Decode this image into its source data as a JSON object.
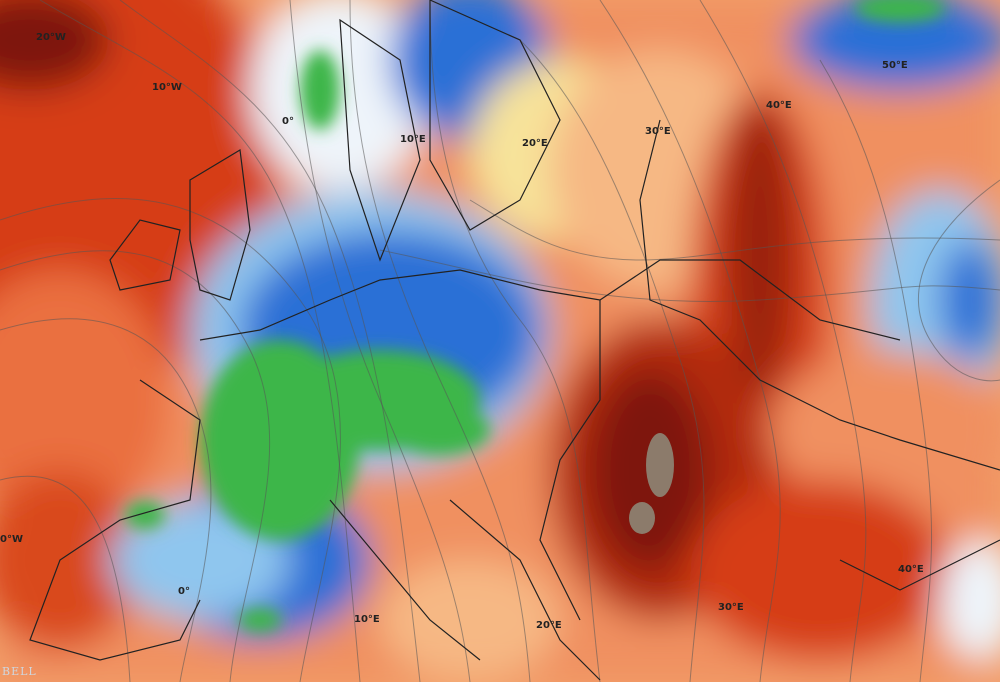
{
  "map": {
    "layers": [
      "temperature-anomaly-fill",
      "streamlines",
      "country-borders"
    ],
    "colors": {
      "dark_red": "#7e1508",
      "red": "#d63c18",
      "orange": "#ef8550",
      "light_orange": "#f6b884",
      "yellow": "#f7e39a",
      "white": "#eef4fa",
      "light_blue": "#8fc6ee",
      "blue": "#2a70d6",
      "green": "#3cb64a",
      "brown": "#8c7b6b"
    },
    "grid_labels": {
      "w20_top": "20°W",
      "w10_top": "10°W",
      "zero_top": "0°",
      "e10_top": "10°E",
      "e20_top": "20°E",
      "e30_top": "30°E",
      "e40_top": "40°E",
      "e50_top": "50°E",
      "w_left": "0°W",
      "zero_bottom": "0°",
      "e10_bottom": "10°E",
      "e20_bottom": "20°E",
      "e30_bottom": "30°E",
      "e40_bottom": "40°E"
    },
    "watermark": "BELL"
  }
}
